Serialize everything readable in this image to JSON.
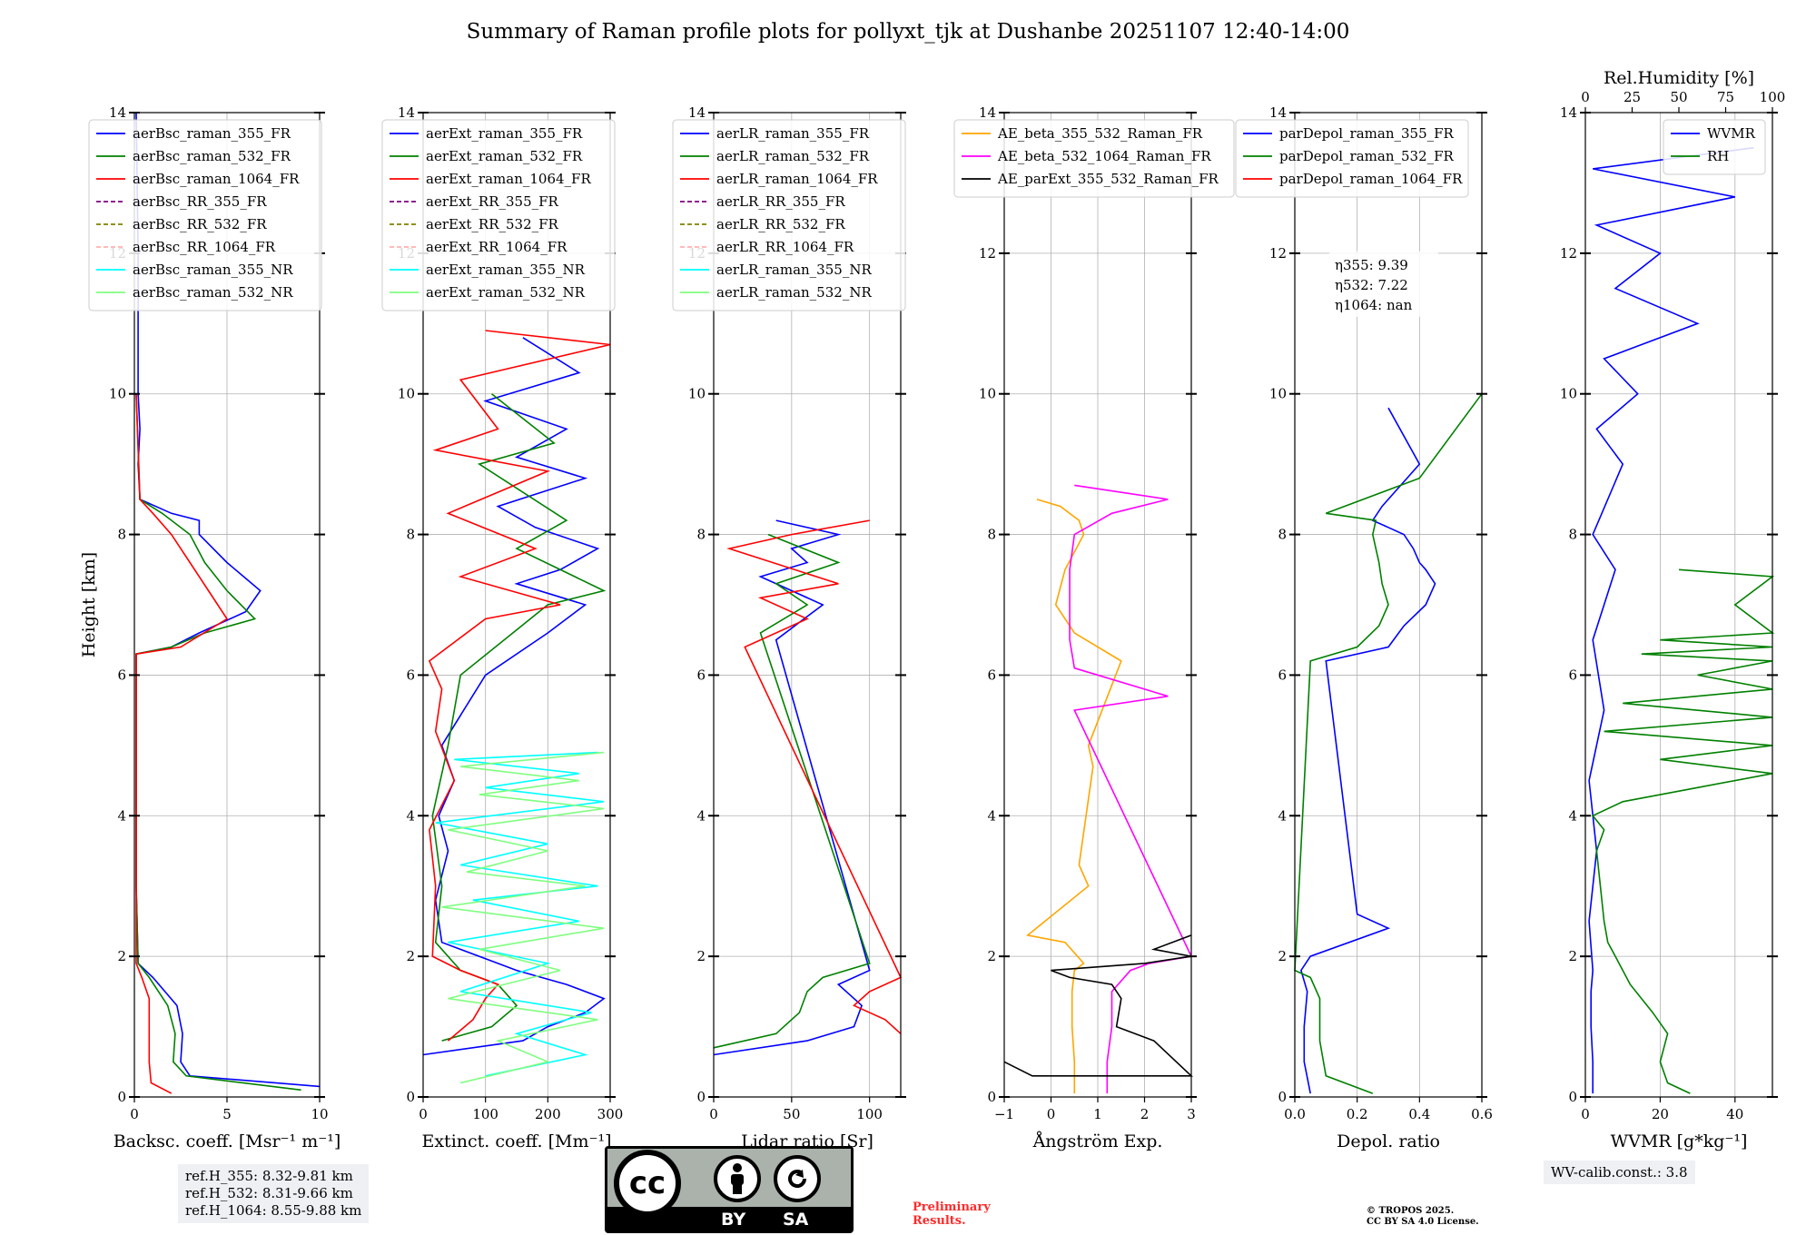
{
  "title": "Summary of Raman profile plots for pollyxt_tjk at Dushanbe 20251107 12:40-14:00",
  "ylabel": "Height [km]",
  "height_ticks": [
    "0",
    "2",
    "4",
    "6",
    "8",
    "10",
    "12",
    "14"
  ],
  "chart_data": [
    {
      "type": "line",
      "panel": "backscatter",
      "xlabel": "Backsc. coeff. [Msr⁻¹ m⁻¹]",
      "xlim": [
        0,
        10
      ],
      "ylim": [
        0,
        14
      ],
      "xticks": [
        0,
        5,
        10
      ],
      "xticklabels": [
        "0",
        "5",
        "10"
      ],
      "legend": [
        "aerBsc_raman_355_FR",
        "aerBsc_raman_532_FR",
        "aerBsc_raman_1064_FR",
        "aerBsc_RR_355_FR",
        "aerBsc_RR_532_FR",
        "aerBsc_RR_1064_FR",
        "aerBsc_raman_355_NR",
        "aerBsc_raman_532_NR"
      ],
      "legend_location": "upper-left",
      "series": [
        {
          "name": "aerBsc_raman_355_FR",
          "color": "#0000ff",
          "x": [
            10,
            3,
            2.5,
            2.6,
            2.3,
            1,
            0.2,
            0.1,
            0.1,
            0.1,
            0.1,
            0.1,
            0.1,
            2,
            3.5,
            6,
            6.8,
            5,
            3.5,
            3.5,
            2,
            0.3,
            0.2,
            0.3,
            0.2,
            0.2,
            0.1
          ],
          "y": [
            0.15,
            0.3,
            0.5,
            0.9,
            1.3,
            1.7,
            1.9,
            3,
            4,
            5,
            6,
            6.2,
            6.3,
            6.4,
            6.6,
            6.9,
            7.2,
            7.6,
            8,
            8.2,
            8.3,
            8.5,
            9,
            9.5,
            10,
            12,
            14
          ]
        },
        {
          "name": "aerBsc_raman_532_FR",
          "color": "#008000",
          "x": [
            9,
            2.8,
            2.1,
            2.2,
            1.8,
            0.8,
            0.2,
            0.1,
            0.1,
            0.1,
            0.1,
            2,
            3.8,
            6.5,
            5,
            3.8,
            3,
            1.5,
            0.3,
            0.1
          ],
          "y": [
            0.1,
            0.3,
            0.5,
            0.9,
            1.3,
            1.7,
            1.9,
            3,
            5,
            6.2,
            6.3,
            6.4,
            6.6,
            6.8,
            7.2,
            7.6,
            8,
            8.3,
            8.5,
            10
          ]
        },
        {
          "name": "aerBsc_raman_1064_FR",
          "color": "#ff0000",
          "x": [
            2,
            0.9,
            0.8,
            0.8,
            0.8,
            0.4,
            0.1,
            0.1,
            0.1,
            0.1,
            2.5,
            5,
            4,
            3,
            2,
            1,
            0.3,
            0.1
          ],
          "y": [
            0.05,
            0.2,
            0.5,
            1,
            1.4,
            1.7,
            1.9,
            3,
            6.2,
            6.3,
            6.4,
            6.8,
            7.2,
            7.6,
            8,
            8.3,
            8.5,
            10
          ]
        }
      ]
    },
    {
      "type": "line",
      "panel": "extinction",
      "xlabel": "Extinct. coeff. [Mm⁻¹]",
      "xlim": [
        0,
        300
      ],
      "ylim": [
        0,
        14
      ],
      "xticks": [
        0,
        100,
        200,
        300
      ],
      "xticklabels": [
        "0",
        "100",
        "200",
        "300"
      ],
      "legend": [
        "aerExt_raman_355_FR",
        "aerExt_raman_532_FR",
        "aerExt_raman_1064_FR",
        "aerExt_RR_355_FR",
        "aerExt_RR_532_FR",
        "aerExt_RR_1064_FR",
        "aerExt_raman_355_NR",
        "aerExt_raman_532_NR"
      ],
      "legend_location": "upper-left",
      "series": [
        {
          "name": "aerExt_raman_355_FR",
          "color": "#0000ff",
          "x": [
            0,
            160,
            200,
            260,
            290,
            230,
            150,
            120,
            30,
            20,
            40,
            25,
            50,
            30,
            100,
            200,
            260,
            150,
            220,
            280,
            180,
            120,
            260,
            150,
            230,
            100,
            250,
            160
          ],
          "y": [
            0.6,
            0.8,
            1,
            1.2,
            1.4,
            1.6,
            1.8,
            1.9,
            2.2,
            2.8,
            3.5,
            4,
            4.5,
            5,
            6,
            6.6,
            7,
            7.3,
            7.5,
            7.8,
            8.1,
            8.4,
            8.8,
            9.1,
            9.5,
            9.9,
            10.3,
            10.8
          ]
        },
        {
          "name": "aerExt_raman_532_FR",
          "color": "#008000",
          "x": [
            30,
            110,
            150,
            120,
            60,
            20,
            30,
            15,
            40,
            60,
            200,
            290,
            150,
            230,
            90,
            210,
            110
          ],
          "y": [
            0.8,
            1,
            1.3,
            1.6,
            1.8,
            2.2,
            3,
            4,
            5,
            6,
            7,
            7.2,
            7.8,
            8.2,
            9,
            9.3,
            10
          ]
        },
        {
          "name": "aerExt_raman_1064_FR",
          "color": "#ff0000",
          "x": [
            40,
            80,
            100,
            120,
            60,
            15,
            20,
            10,
            50,
            20,
            30,
            10,
            100,
            220,
            60,
            180,
            40,
            200,
            20,
            120,
            60,
            300,
            100
          ],
          "y": [
            0.8,
            1.1,
            1.4,
            1.6,
            1.8,
            2,
            3,
            3.8,
            4.5,
            5.2,
            5.8,
            6.2,
            6.8,
            7,
            7.4,
            7.8,
            8.3,
            8.9,
            9.2,
            9.5,
            10.2,
            10.7,
            10.9
          ]
        },
        {
          "name": "aerExt_raman_355_NR",
          "color": "#00ffff",
          "x": [
            100,
            260,
            150,
            270,
            60,
            200,
            40,
            250,
            80,
            280,
            60,
            200,
            20,
            290,
            100,
            250,
            50,
            280
          ],
          "y": [
            0.3,
            0.6,
            0.9,
            1.2,
            1.5,
            1.9,
            2.2,
            2.5,
            2.8,
            3,
            3.3,
            3.6,
            3.9,
            4.2,
            4.4,
            4.6,
            4.8,
            4.9
          ]
        },
        {
          "name": "aerExt_raman_532_NR",
          "color": "#7fff7f",
          "x": [
            60,
            200,
            120,
            280,
            40,
            220,
            90,
            290,
            30,
            260,
            70,
            200,
            40,
            290,
            90,
            250,
            60,
            290
          ],
          "y": [
            0.2,
            0.5,
            0.8,
            1.1,
            1.4,
            1.8,
            2.1,
            2.4,
            2.7,
            3,
            3.2,
            3.5,
            3.8,
            4.1,
            4.3,
            4.5,
            4.7,
            4.9
          ]
        }
      ]
    },
    {
      "type": "line",
      "panel": "lidar_ratio",
      "xlabel": "Lidar ratio [Sr]",
      "xlim": [
        0,
        120
      ],
      "ylim": [
        0,
        14
      ],
      "xticks": [
        0,
        50,
        100
      ],
      "xticklabels": [
        "0",
        "50",
        "100"
      ],
      "legend": [
        "aerLR_raman_355_FR",
        "aerLR_raman_532_FR",
        "aerLR_raman_1064_FR",
        "aerLR_RR_355_FR",
        "aerLR_RR_532_FR",
        "aerLR_RR_1064_FR",
        "aerLR_raman_355_NR",
        "aerLR_raman_532_NR"
      ],
      "legend_location": "upper-left",
      "series": [
        {
          "name": "aerLR_raman_355_FR",
          "color": "#0000ff",
          "x": [
            0,
            60,
            90,
            95,
            80,
            100,
            40,
            70,
            30,
            60,
            50,
            80,
            40
          ],
          "y": [
            0.6,
            0.8,
            1,
            1.3,
            1.6,
            1.8,
            6.5,
            7,
            7.4,
            7.6,
            7.8,
            8,
            8.2
          ]
        },
        {
          "name": "aerLR_raman_532_FR",
          "color": "#008000",
          "x": [
            0,
            40,
            55,
            60,
            70,
            100,
            30,
            60,
            40,
            80,
            35
          ],
          "y": [
            0.7,
            0.9,
            1.2,
            1.5,
            1.7,
            1.9,
            6.6,
            7,
            7.3,
            7.6,
            8
          ]
        },
        {
          "name": "aerLR_raman_1064_FR",
          "color": "#ff0000",
          "x": [
            120,
            110,
            90,
            100,
            120,
            20,
            60,
            30,
            80,
            10,
            50,
            100
          ],
          "y": [
            0.9,
            1.1,
            1.3,
            1.5,
            1.7,
            6.4,
            6.8,
            7.1,
            7.3,
            7.8,
            8,
            8.2
          ]
        }
      ]
    },
    {
      "type": "line",
      "panel": "angstrom",
      "xlabel": "Ångström Exp.",
      "xlim": [
        -1,
        3
      ],
      "ylim": [
        0,
        14
      ],
      "xticks": [
        -1,
        0,
        1,
        2,
        3
      ],
      "xticklabels": [
        "−1",
        "0",
        "1",
        "2",
        "3"
      ],
      "legend": [
        "AE_beta_355_532_Raman_FR",
        "AE_beta_532_1064_Raman_FR",
        "AE_parExt_355_532_Raman_FR"
      ],
      "legend_location": "upper-left",
      "series": [
        {
          "name": "AE_beta_355_532_Raman_FR",
          "color": "#ffa500",
          "x": [
            0.5,
            0.5,
            0.45,
            0.45,
            0.5,
            0.7,
            0.3,
            -0.5,
            0.8,
            0.6,
            0.9,
            0.8,
            1.5,
            0.5,
            0.1,
            0.3,
            0.7,
            0.6,
            0.2,
            -0.3
          ],
          "y": [
            0.05,
            0.5,
            1,
            1.5,
            1.8,
            1.9,
            2.2,
            2.3,
            3,
            3.3,
            4.7,
            5,
            6.2,
            6.6,
            7,
            7.5,
            8,
            8.2,
            8.4,
            8.5
          ]
        },
        {
          "name": "AE_beta_532_1064_Raman_FR",
          "color": "#ff00ff",
          "x": [
            1.2,
            1.2,
            1.3,
            1.3,
            1.7,
            2.1,
            3,
            0.5,
            2.5,
            0.5,
            0.4,
            0.4,
            0.4,
            0.5,
            1.3,
            2.5,
            0.5
          ],
          "y": [
            0.05,
            0.5,
            1,
            1.5,
            1.8,
            1.9,
            2,
            5.5,
            5.7,
            6.1,
            6.5,
            7,
            7.5,
            8,
            8.3,
            8.5,
            8.7
          ]
        },
        {
          "name": "AE_parExt_355_532_Raman_FR",
          "color": "#000000",
          "x": [
            -1,
            -0.4,
            3,
            2.2,
            1.4,
            1.5,
            1.3,
            0.4,
            0,
            2,
            3,
            2.2,
            3
          ],
          "y": [
            0.5,
            0.3,
            0.3,
            0.8,
            1,
            1.4,
            1.6,
            1.7,
            1.8,
            1.9,
            2,
            2.1,
            2.3
          ]
        }
      ]
    },
    {
      "type": "line",
      "panel": "depolarization",
      "xlabel": "Depol. ratio",
      "xlim": [
        0,
        0.6
      ],
      "ylim": [
        0,
        14
      ],
      "xticks": [
        0,
        0.2,
        0.4,
        0.6
      ],
      "xticklabels": [
        "0.0",
        "0.2",
        "0.4",
        "0.6"
      ],
      "legend": [
        "parDepol_raman_355_FR",
        "parDepol_raman_532_FR",
        "parDepol_raman_1064_FR"
      ],
      "legend_location": "upper-left",
      "annotations": [
        "η355: 9.39",
        "η532: 7.22",
        "η1064: nan"
      ],
      "series": [
        {
          "name": "parDepol_raman_355_FR",
          "color": "#0000ff",
          "x": [
            0.05,
            0.03,
            0.03,
            0.04,
            0.02,
            0.05,
            0.3,
            0.2,
            0.1,
            0.3,
            0.35,
            0.42,
            0.45,
            0.42,
            0.4,
            0.38,
            0.35,
            0.3,
            0.25,
            0.28,
            0.4,
            0.3
          ],
          "y": [
            0.05,
            0.5,
            1,
            1.5,
            1.8,
            2,
            2.4,
            2.6,
            6.2,
            6.4,
            6.7,
            7,
            7.3,
            7.5,
            7.6,
            7.8,
            8,
            8.1,
            8.2,
            8.4,
            9,
            9.8
          ]
        },
        {
          "name": "parDepol_raman_532_FR",
          "color": "#008000",
          "x": [
            0.25,
            0.1,
            0.08,
            0.08,
            0.05,
            0,
            0.05,
            0.2,
            0.27,
            0.3,
            0.28,
            0.27,
            0.25,
            0.26,
            0.1,
            0.4,
            0.6
          ],
          "y": [
            0.05,
            0.3,
            0.8,
            1.4,
            1.7,
            1.8,
            6.2,
            6.4,
            6.7,
            7,
            7.3,
            7.6,
            8,
            8.2,
            8.3,
            8.8,
            10
          ]
        }
      ]
    },
    {
      "type": "line",
      "panel": "water_vapor",
      "xlabel": "WVMR [g*kg⁻¹]",
      "xlim": [
        0,
        50
      ],
      "ylim": [
        0,
        14
      ],
      "xticks": [
        0,
        20,
        40
      ],
      "xticklabels": [
        "0",
        "20",
        "40"
      ],
      "top_xlabel": "Rel.Humidity [%]",
      "top_xlim": [
        0,
        100
      ],
      "top_xticks": [
        0,
        25,
        50,
        75,
        100
      ],
      "top_xticklabels": [
        "0",
        "25",
        "50",
        "75",
        "100"
      ],
      "legend": [
        "WVMR",
        "RH"
      ],
      "legend_location": "upper-right",
      "series": [
        {
          "name": "WVMR",
          "color": "#0000ff",
          "x": [
            2,
            2,
            1.5,
            1.5,
            2,
            1,
            3,
            1,
            5,
            2,
            8,
            2,
            10,
            3,
            14,
            5,
            30,
            8,
            20,
            3,
            40,
            2,
            45
          ],
          "y": [
            0.05,
            0.5,
            1,
            1.5,
            1.8,
            2.5,
            3.5,
            4.5,
            5.5,
            6.5,
            7.5,
            8,
            9,
            9.5,
            10,
            10.5,
            11,
            11.5,
            12,
            12.4,
            12.8,
            13.2,
            13.5
          ]
        },
        {
          "name": "RH",
          "color": "#008000",
          "x": [
            28,
            22,
            20,
            22,
            18,
            15,
            12,
            10,
            8,
            6,
            5,
            4,
            3,
            5,
            2,
            10,
            30,
            70,
            20,
            100,
            5,
            60,
            10,
            90,
            30,
            100,
            15,
            50,
            20,
            100,
            40,
            100,
            25
          ],
          "y": [
            0.05,
            0.2,
            0.5,
            0.9,
            1.2,
            1.4,
            1.6,
            1.8,
            2,
            2.2,
            2.5,
            3,
            3.5,
            3.8,
            4,
            4.2,
            4.4,
            4.6,
            4.8,
            5,
            5.2,
            5.4,
            5.6,
            5.8,
            6,
            6.2,
            6.3,
            6.4,
            6.5,
            6.6,
            7,
            7.4,
            7.5
          ]
        }
      ]
    }
  ],
  "ref_heights": [
    "ref.H_355: 8.32-9.81 km",
    "ref.H_532: 8.31-9.66 km",
    "ref.H_1064: 8.55-9.88 km"
  ],
  "wv_calib": "WV-calib.const.: 3.8",
  "preliminary": [
    "Preliminary",
    "Results."
  ],
  "tropos": [
    "© TROPOS 2025.",
    "CC BY SA 4.0 License."
  ],
  "license_badge": {
    "cc": "cc",
    "by": "BY",
    "sa": "SA"
  },
  "colors": {
    "355_FR": "#0000ff",
    "532_FR": "#008000",
    "1064_FR": "#ff0000",
    "RR_355": "#800080",
    "RR_532": "#808000",
    "RR_1064": "#ffb0b0",
    "355_NR": "#00ffff",
    "532_NR": "#7fff7f",
    "grid": "#b0b0b0"
  }
}
